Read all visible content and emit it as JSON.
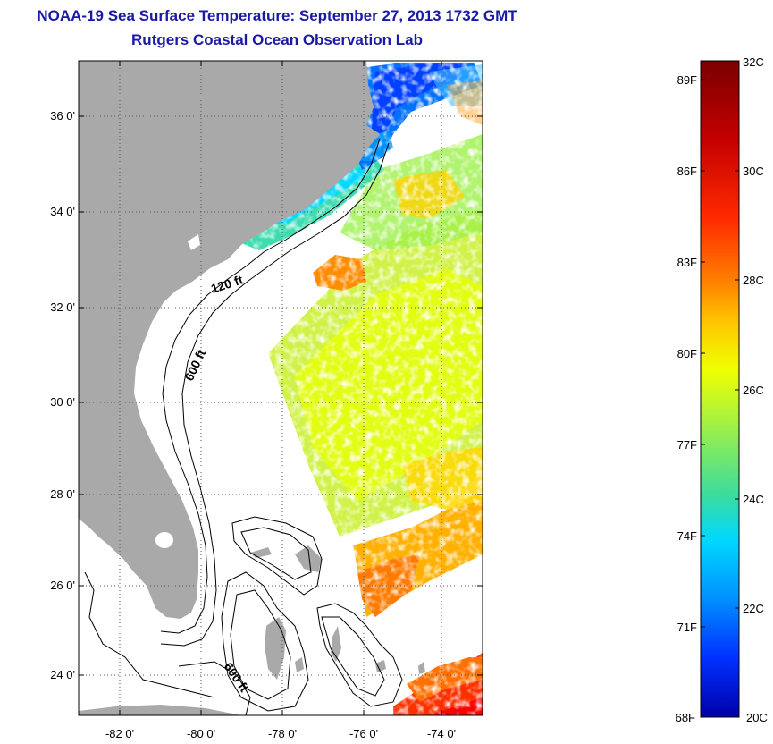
{
  "title": {
    "line1": "NOAA-19 Sea Surface Temperature:  September 27, 2013 1732 GMT",
    "line2": "Rutgers Coastal Ocean Observation Lab"
  },
  "map": {
    "lat_ticks": [
      "36 0'",
      "34 0'",
      "32 0'",
      "30 0'",
      "28 0'",
      "26 0'",
      "24 0'"
    ],
    "lon_ticks": [
      "-82 0'",
      "-80 0'",
      "-78 0'",
      "-76 0'",
      "-74 0'"
    ],
    "contours": [
      "120 ft",
      "600 ft",
      "600 ft"
    ],
    "colors": {
      "land": "#a9a9a9",
      "gridline": "#666666"
    }
  },
  "colorbar": {
    "celsius": [
      "32C",
      "30C",
      "28C",
      "26C",
      "24C",
      "22C",
      "20C"
    ],
    "fahrenheit": [
      "89F",
      "86F",
      "83F",
      "80F",
      "77F",
      "74F",
      "71F",
      "68F"
    ],
    "colormap": [
      "#7a0000",
      "#c40000",
      "#ff2a00",
      "#ff7a00",
      "#ffc800",
      "#e8ff00",
      "#9cf04a",
      "#3cdc9c",
      "#00d8ff",
      "#0090ff",
      "#0030ff",
      "#0000a8"
    ]
  }
}
